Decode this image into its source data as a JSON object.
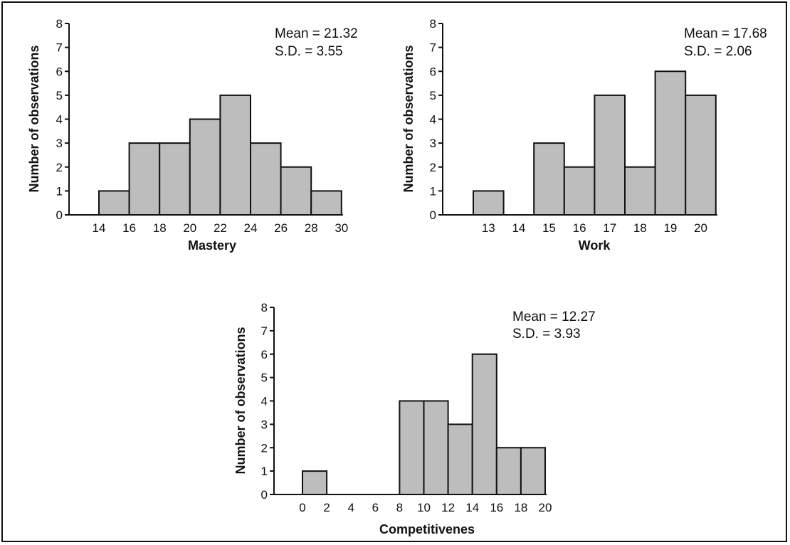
{
  "colors": {
    "bar_fill": "#bdbdbd",
    "ink": "#111111",
    "background": "#ffffff"
  },
  "chart_data": [
    {
      "type": "bar",
      "xlabel": "Mastery",
      "ylabel": "Number of observations",
      "ylim": [
        0,
        8
      ],
      "yticks": [
        "0",
        "1",
        "2",
        "3",
        "4",
        "5",
        "6",
        "7",
        "8"
      ],
      "tick_mode": "edges",
      "tick_labels": [
        "14",
        "16",
        "18",
        "20",
        "22",
        "24",
        "26",
        "28",
        "30"
      ],
      "bin_edges": [
        14,
        16,
        18,
        20,
        22,
        24,
        26,
        28,
        30
      ],
      "values": [
        1,
        3,
        3,
        4,
        5,
        3,
        2,
        1
      ],
      "mean_text": "Mean = 21.32",
      "sd_text": "S.D. = 3.55",
      "grid": false
    },
    {
      "type": "bar",
      "xlabel": "Work",
      "ylabel": "Number of observations",
      "ylim": [
        0,
        8
      ],
      "yticks": [
        "0",
        "1",
        "2",
        "3",
        "4",
        "5",
        "6",
        "7",
        "8"
      ],
      "tick_mode": "centers",
      "tick_labels": [
        "13",
        "14",
        "15",
        "16",
        "17",
        "18",
        "19",
        "20"
      ],
      "values": [
        1,
        0,
        3,
        2,
        5,
        2,
        6,
        5
      ],
      "mean_text": "Mean = 17.68",
      "sd_text": "S.D. = 2.06",
      "grid": false
    },
    {
      "type": "bar",
      "xlabel": "Competitivenes",
      "ylabel": "Number of observations",
      "ylim": [
        0,
        8
      ],
      "yticks": [
        "0",
        "1",
        "2",
        "3",
        "4",
        "5",
        "6",
        "7",
        "8"
      ],
      "tick_mode": "edges",
      "tick_labels": [
        "0",
        "2",
        "4",
        "6",
        "8",
        "10",
        "12",
        "14",
        "16",
        "18",
        "20"
      ],
      "bin_edges": [
        0,
        2,
        4,
        6,
        8,
        10,
        12,
        14,
        16,
        18,
        20
      ],
      "values": [
        1,
        0,
        0,
        0,
        4,
        4,
        3,
        6,
        2,
        2
      ],
      "mean_text": "Mean = 12.27",
      "sd_text": "S.D. = 3.93",
      "grid": false
    }
  ]
}
